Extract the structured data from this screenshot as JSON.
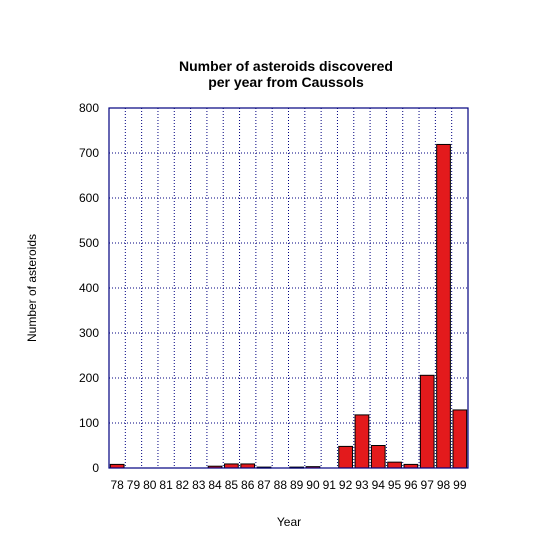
{
  "chart_data": {
    "type": "bar",
    "title": [
      "Number of asteroids discovered",
      "per year from Caussols"
    ],
    "xlabel": "Year",
    "ylabel": "Number of asteroids",
    "categories": [
      "78",
      "79",
      "80",
      "81",
      "82",
      "83",
      "84",
      "85",
      "86",
      "87",
      "88",
      "89",
      "90",
      "91",
      "92",
      "93",
      "94",
      "95",
      "96",
      "97",
      "98",
      "99"
    ],
    "values": [
      8,
      0,
      0,
      0,
      0,
      0,
      4,
      9,
      9,
      2,
      0,
      2,
      3,
      0,
      48,
      118,
      50,
      13,
      8,
      206,
      719,
      129
    ],
    "ylim": [
      0,
      800
    ],
    "yticks": [
      0,
      100,
      200,
      300,
      400,
      500,
      600,
      700,
      800
    ],
    "grid": true,
    "colors": {
      "bar": "#e31a1c",
      "bar_edge": "#000000",
      "frame": "#000080",
      "grid": "#000080"
    }
  }
}
